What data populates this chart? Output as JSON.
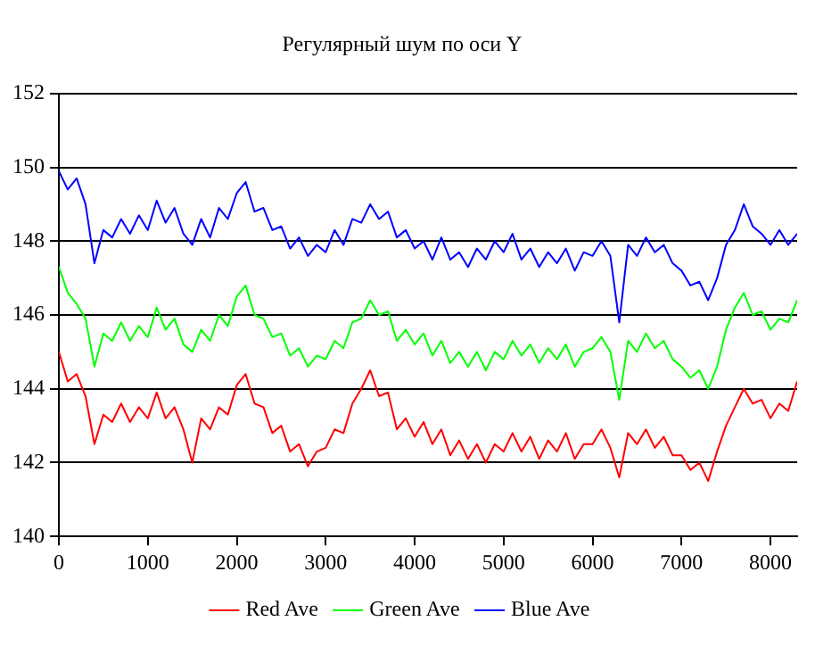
{
  "chart_data": {
    "type": "line",
    "title": "Регулярный шум по оси Y",
    "x": [
      0,
      100,
      200,
      300,
      400,
      500,
      600,
      700,
      800,
      900,
      1000,
      1100,
      1200,
      1300,
      1400,
      1500,
      1600,
      1700,
      1800,
      1900,
      2000,
      2100,
      2200,
      2300,
      2400,
      2500,
      2600,
      2700,
      2800,
      2900,
      3000,
      3100,
      3200,
      3300,
      3400,
      3500,
      3600,
      3700,
      3800,
      3900,
      4000,
      4100,
      4200,
      4300,
      4400,
      4500,
      4600,
      4700,
      4800,
      4900,
      5000,
      5100,
      5200,
      5300,
      5400,
      5500,
      5600,
      5700,
      5800,
      5900,
      6000,
      6100,
      6200,
      6300,
      6400,
      6500,
      6600,
      6700,
      6800,
      6900,
      7000,
      7100,
      7200,
      7300,
      7400,
      7500,
      7600,
      7700,
      7800,
      7900,
      8000,
      8100,
      8200,
      8300
    ],
    "series": [
      {
        "name": "Red Ave",
        "color": "#ff0000",
        "values": [
          145.0,
          144.2,
          144.4,
          143.8,
          142.5,
          143.3,
          143.1,
          143.6,
          143.1,
          143.5,
          143.2,
          143.9,
          143.2,
          143.5,
          142.9,
          142.0,
          143.2,
          142.9,
          143.5,
          143.3,
          144.1,
          144.4,
          143.6,
          143.5,
          142.8,
          143.0,
          142.3,
          142.5,
          141.9,
          142.3,
          142.4,
          142.9,
          142.8,
          143.6,
          144.0,
          144.5,
          143.8,
          143.9,
          142.9,
          143.2,
          142.7,
          143.1,
          142.5,
          142.9,
          142.2,
          142.6,
          142.1,
          142.5,
          142.0,
          142.5,
          142.3,
          142.8,
          142.3,
          142.7,
          142.1,
          142.6,
          142.3,
          142.8,
          142.1,
          142.5,
          142.5,
          142.9,
          142.4,
          141.6,
          142.8,
          142.5,
          142.9,
          142.4,
          142.7,
          142.2,
          142.2,
          141.8,
          142.0,
          141.5,
          142.3,
          143.0,
          143.5,
          144.0,
          143.6,
          143.7,
          143.2,
          143.6,
          143.4,
          144.2
        ]
      },
      {
        "name": "Green Ave",
        "color": "#00ff00",
        "values": [
          147.3,
          146.6,
          146.3,
          145.9,
          144.6,
          145.5,
          145.3,
          145.8,
          145.3,
          145.7,
          145.4,
          146.2,
          145.6,
          145.9,
          145.2,
          145.0,
          145.6,
          145.3,
          146.0,
          145.7,
          146.5,
          146.8,
          146.0,
          145.9,
          145.4,
          145.5,
          144.9,
          145.1,
          144.6,
          144.9,
          144.8,
          145.3,
          145.1,
          145.8,
          145.9,
          146.4,
          146.0,
          146.1,
          145.3,
          145.6,
          145.2,
          145.5,
          144.9,
          145.3,
          144.7,
          145.0,
          144.6,
          145.0,
          144.5,
          145.0,
          144.8,
          145.3,
          144.9,
          145.2,
          144.7,
          145.1,
          144.8,
          145.2,
          144.6,
          145.0,
          145.1,
          145.4,
          145.0,
          143.7,
          145.3,
          145.0,
          145.5,
          145.1,
          145.3,
          144.8,
          144.6,
          144.3,
          144.5,
          144.0,
          144.6,
          145.6,
          146.2,
          146.6,
          146.0,
          146.1,
          145.6,
          145.9,
          145.8,
          146.4
        ]
      },
      {
        "name": "Blue Ave",
        "color": "#0000ff",
        "values": [
          149.9,
          149.4,
          149.7,
          149.0,
          147.4,
          148.3,
          148.1,
          148.6,
          148.2,
          148.7,
          148.3,
          149.1,
          148.5,
          148.9,
          148.2,
          147.9,
          148.6,
          148.1,
          148.9,
          148.6,
          149.3,
          149.6,
          148.8,
          148.9,
          148.3,
          148.4,
          147.8,
          148.1,
          147.6,
          147.9,
          147.7,
          148.3,
          147.9,
          148.6,
          148.5,
          149.0,
          148.6,
          148.8,
          148.1,
          148.3,
          147.8,
          148.0,
          147.5,
          148.1,
          147.5,
          147.7,
          147.3,
          147.8,
          147.5,
          148.0,
          147.7,
          148.2,
          147.5,
          147.8,
          147.3,
          147.7,
          147.4,
          147.8,
          147.2,
          147.7,
          147.6,
          148.0,
          147.6,
          145.8,
          147.9,
          147.6,
          148.1,
          147.7,
          147.9,
          147.4,
          147.2,
          146.8,
          146.9,
          146.4,
          147.0,
          147.9,
          148.3,
          149.0,
          148.4,
          148.2,
          147.9,
          148.3,
          147.9,
          148.2
        ]
      }
    ],
    "xlim": [
      0,
      8300
    ],
    "xticks": [
      0,
      1000,
      2000,
      3000,
      4000,
      5000,
      6000,
      7000,
      8000
    ],
    "ylim": [
      140,
      152
    ],
    "yticks": [
      140,
      142,
      144,
      146,
      148,
      150,
      152
    ],
    "grid": "y",
    "legend": "bottom",
    "marker": "none",
    "line_style": "solid"
  }
}
